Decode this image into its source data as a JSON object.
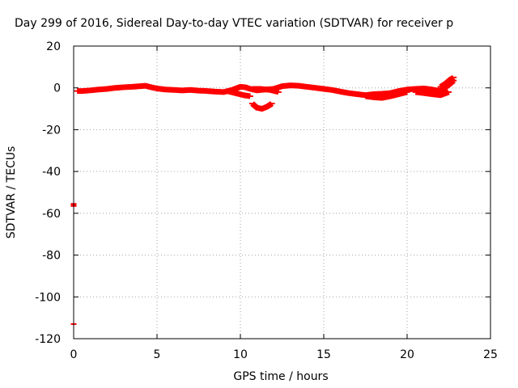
{
  "chart_data": {
    "type": "scatter",
    "title": "Day 299 of 2016, Sidereal Day-to-day VTEC variation (SDTVAR) for receiver p",
    "xlabel": "GPS time / hours",
    "ylabel": "SDTVAR / TECUs",
    "xlim": [
      0,
      25
    ],
    "ylim": [
      -120,
      20
    ],
    "xticks": [
      0,
      5,
      10,
      15,
      20,
      25
    ],
    "yticks": [
      20,
      0,
      -20,
      -40,
      -60,
      -80,
      -100,
      -120
    ],
    "grid": true,
    "marker_color": "#ff0000",
    "series": [
      {
        "x": [
          0.2,
          0.5,
          1.0,
          1.5,
          2.0,
          2.5,
          3.0,
          3.5,
          4.0,
          4.3,
          4.7,
          5.0,
          5.5,
          6.0,
          6.5,
          7.0,
          7.5,
          8.0,
          8.5,
          9.0,
          9.5,
          10.0,
          10.3,
          10.6,
          11.0,
          11.5,
          12.0,
          12.5,
          13.0,
          13.5,
          14.0,
          14.5,
          15.0,
          15.5,
          16.0,
          16.5,
          17.0,
          17.5,
          18.0,
          18.5,
          19.0,
          19.5,
          20.0,
          20.5,
          21.0,
          21.5,
          22.0,
          22.5,
          22.8
        ],
        "y": [
          -1.5,
          -1.5,
          -1.2,
          -0.8,
          -0.5,
          0.0,
          0.3,
          0.5,
          0.8,
          1.0,
          0.2,
          -0.3,
          -0.8,
          -1.0,
          -1.2,
          -1.0,
          -1.3,
          -1.5,
          -1.8,
          -2.0,
          -1.0,
          0.5,
          0.3,
          -0.5,
          -1.2,
          -0.8,
          -0.5,
          0.8,
          1.2,
          1.0,
          0.5,
          0.0,
          -0.5,
          -1.0,
          -1.8,
          -2.5,
          -3.0,
          -3.5,
          -3.0,
          -2.8,
          -2.5,
          -1.5,
          -0.8,
          -0.5,
          -0.3,
          -0.8,
          -1.5,
          1.5,
          3.5
        ]
      },
      {
        "x": [
          9.2,
          9.7,
          10.2,
          10.6
        ],
        "y": [
          -1.5,
          -2.5,
          -3.5,
          -4.0
        ]
      },
      {
        "x": [
          10.7,
          11.0,
          11.3,
          11.6,
          11.9
        ],
        "y": [
          -7.5,
          -9.5,
          -10.0,
          -9.0,
          -7.5
        ]
      },
      {
        "x": [
          10.7,
          11.2,
          11.8,
          12.3
        ],
        "y": [
          -0.5,
          -0.5,
          -1.0,
          -2.0
        ]
      },
      {
        "x": [
          17.5,
          18.0,
          18.5,
          19.0,
          19.5,
          20.0
        ],
        "y": [
          -4.0,
          -4.5,
          -4.8,
          -4.0,
          -3.0,
          -2.0
        ]
      },
      {
        "x": [
          20.5,
          21.0,
          21.5,
          22.0,
          22.5
        ],
        "y": [
          -2.0,
          -2.5,
          -3.0,
          -3.5,
          -2.0
        ]
      },
      {
        "x": [
          22.0,
          22.3,
          22.6,
          22.8
        ],
        "y": [
          0.5,
          2.0,
          4.0,
          5.0
        ]
      },
      {
        "x": [
          0.0,
          0.0
        ],
        "y": [
          -55.5,
          -56.5
        ]
      },
      {
        "x": [
          0.0
        ],
        "y": [
          -113.0
        ]
      }
    ]
  }
}
